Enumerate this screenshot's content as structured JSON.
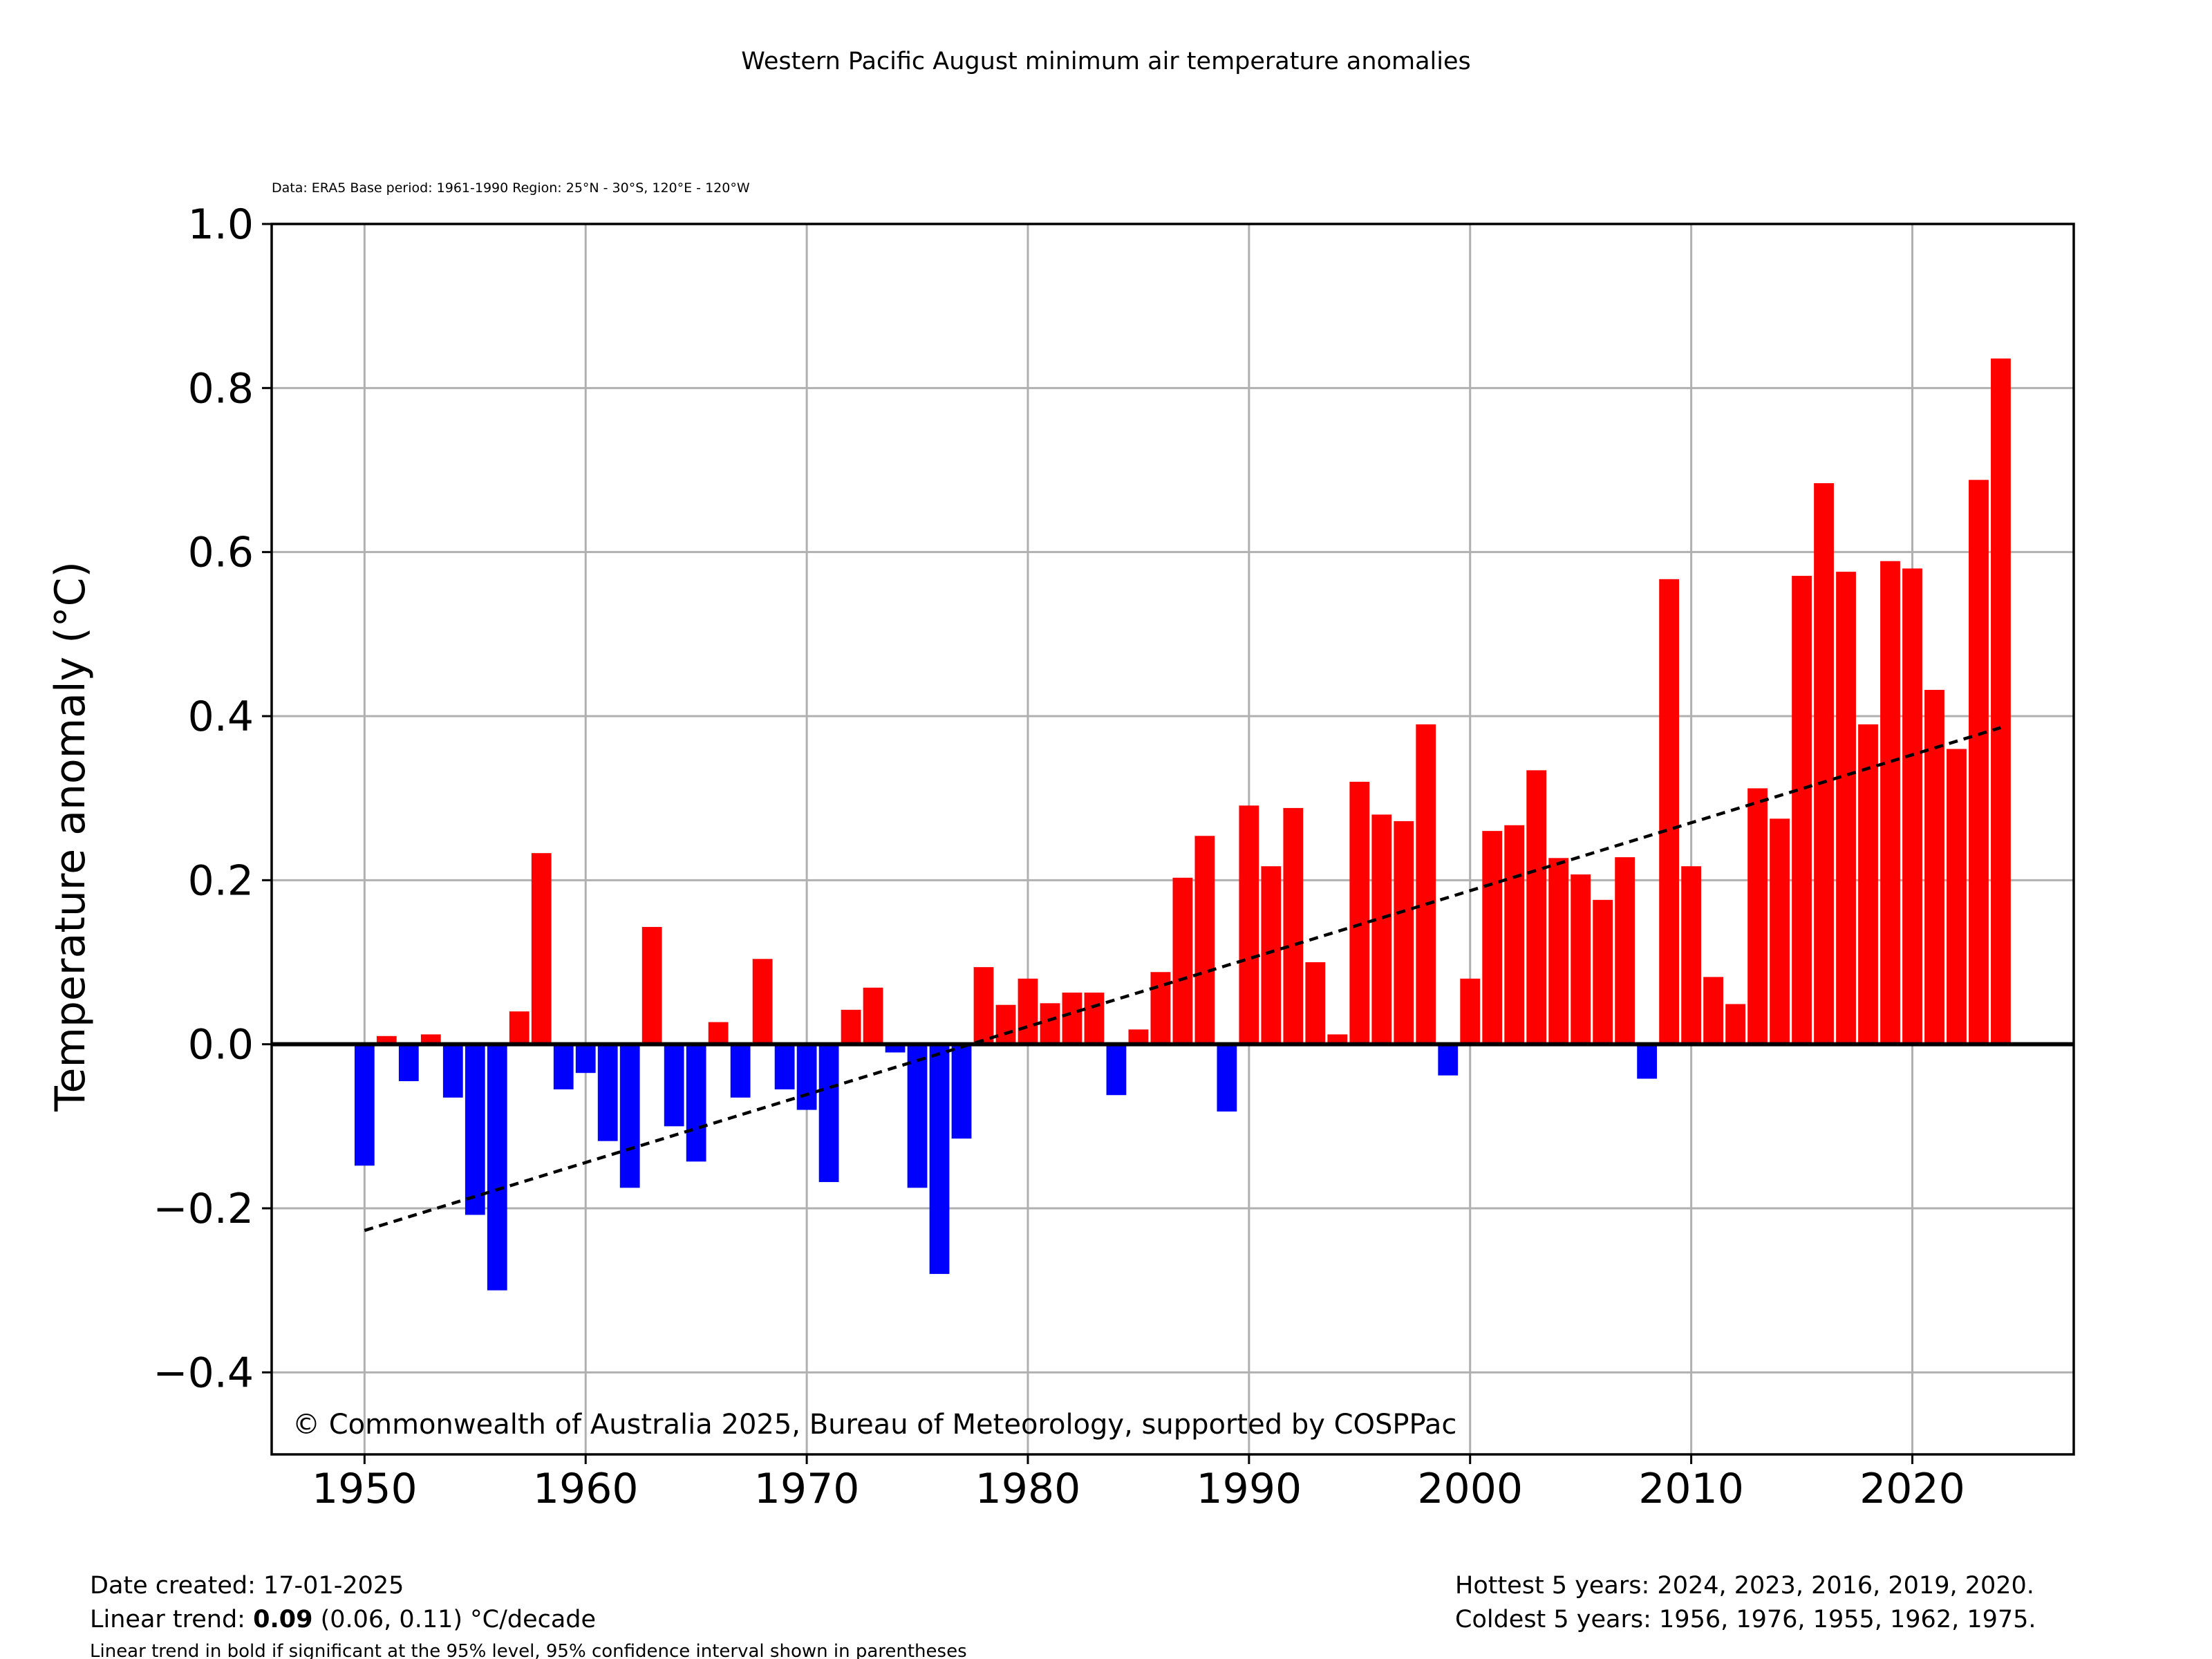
{
  "chart_data": {
    "type": "bar",
    "title": "Western Pacific August minimum air temperature anomalies",
    "subtitle": "Data: ERA5  Base period: 1961-1990  Region: 25°N - 30°S, 120°E - 120°W",
    "ylabel": "Temperature anomaly (°C)",
    "xlabel": "",
    "xlim": [
      1945.8,
      2027.3
    ],
    "ylim": [
      -0.5,
      1.0
    ],
    "xticks": [
      1950,
      1960,
      1970,
      1980,
      1990,
      2000,
      2010,
      2020
    ],
    "xtick_labels": [
      "1950",
      "1960",
      "1970",
      "1980",
      "1990",
      "2000",
      "2010",
      "2020"
    ],
    "yticks": [
      -0.4,
      -0.2,
      0.0,
      0.2,
      0.4,
      0.6,
      0.8,
      1.0
    ],
    "ytick_labels": [
      "−0.4",
      "−0.2",
      "0.0",
      "0.2",
      "0.4",
      "0.6",
      "0.8",
      "1.0"
    ],
    "grid": true,
    "colors": {
      "positive": "#ff0000",
      "negative": "#0000ff",
      "trend": "#000000",
      "grid": "#b0b0b0"
    },
    "years": [
      1950,
      1951,
      1952,
      1953,
      1954,
      1955,
      1956,
      1957,
      1958,
      1959,
      1960,
      1961,
      1962,
      1963,
      1964,
      1965,
      1966,
      1967,
      1968,
      1969,
      1970,
      1971,
      1972,
      1973,
      1974,
      1975,
      1976,
      1977,
      1978,
      1979,
      1980,
      1981,
      1982,
      1983,
      1984,
      1985,
      1986,
      1987,
      1988,
      1989,
      1990,
      1991,
      1992,
      1993,
      1994,
      1995,
      1996,
      1997,
      1998,
      1999,
      2000,
      2001,
      2002,
      2003,
      2004,
      2005,
      2006,
      2007,
      2008,
      2009,
      2010,
      2011,
      2012,
      2013,
      2014,
      2015,
      2016,
      2017,
      2018,
      2019,
      2020,
      2021,
      2022,
      2023,
      2024
    ],
    "values": [
      -0.148,
      0.01,
      -0.045,
      0.012,
      -0.065,
      -0.208,
      -0.3,
      0.04,
      0.233,
      -0.055,
      -0.035,
      -0.118,
      -0.175,
      0.143,
      -0.1,
      -0.143,
      0.027,
      -0.065,
      0.104,
      -0.055,
      -0.08,
      -0.168,
      0.042,
      0.069,
      -0.01,
      -0.175,
      -0.28,
      -0.115,
      0.094,
      0.048,
      0.08,
      0.05,
      0.063,
      0.063,
      -0.062,
      0.018,
      0.088,
      0.203,
      0.254,
      -0.082,
      0.291,
      0.217,
      0.288,
      0.1,
      0.012,
      0.32,
      0.28,
      0.272,
      0.39,
      -0.038,
      0.08,
      0.26,
      0.267,
      0.334,
      0.227,
      0.207,
      0.176,
      0.228,
      -0.042,
      0.567,
      0.217,
      0.082,
      0.049,
      0.312,
      0.275,
      0.571,
      0.684,
      0.576,
      0.39,
      0.589,
      0.58,
      0.432,
      0.36,
      0.688,
      0.836
    ],
    "trend_line": {
      "x": [
        1950,
        2024
      ],
      "y": [
        -0.227,
        0.386
      ]
    },
    "annotation": "© Commonwealth of Australia 2025, Bureau of Meteorology, supported by COSPPac"
  },
  "footer": {
    "date_created": "Date created: 17-01-2025",
    "trend_prefix": "Linear trend: ",
    "trend_value": "0.09",
    "trend_suffix": " (0.06, 0.11) °C/decade",
    "note": "Linear trend in bold if significant at the 95% level, 95% confidence interval shown in parentheses",
    "hottest": "Hottest 5 years: 2024, 2023, 2016, 2019, 2020.",
    "coldest": "Coldest 5 years: 1956, 1976, 1955, 1962, 1975."
  }
}
